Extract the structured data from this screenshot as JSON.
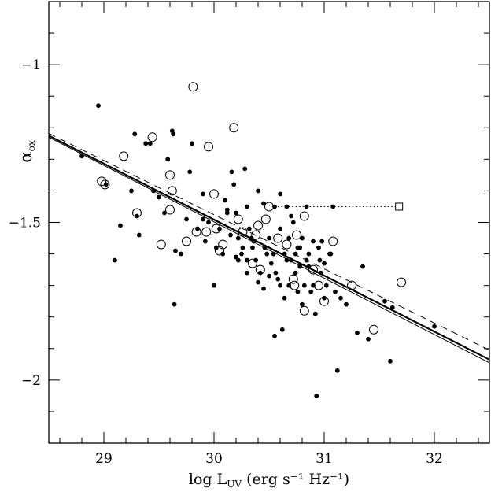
{
  "chart_data": {
    "type": "scatter",
    "title": "",
    "xlabel": "log L",
    "xlabel_sub": "UV",
    "xlabel_units": " (erg s⁻¹ Hz⁻¹)",
    "ylabel": "α",
    "ylabel_sub": "ox",
    "xlim": [
      28.5,
      32.5
    ],
    "ylim": [
      -2.2,
      -0.8
    ],
    "x_ticks": [
      {
        "value": 29,
        "label": "29"
      },
      {
        "value": 30,
        "label": "30"
      },
      {
        "value": 31,
        "label": "31"
      },
      {
        "value": 32,
        "label": "32"
      }
    ],
    "y_ticks": [
      {
        "value": -1,
        "label": "−1"
      },
      {
        "value": -1.5,
        "label": "−1.5"
      },
      {
        "value": -2,
        "label": "−2"
      }
    ],
    "x_minor_step": 0.2,
    "y_minor_step": 0.1,
    "grid": false,
    "series": [
      {
        "marker": "filled-circle",
        "points": [
          [
            28.8,
            -1.29
          ],
          [
            28.95,
            -1.13
          ],
          [
            29.02,
            -1.38
          ],
          [
            29.1,
            -1.62
          ],
          [
            29.15,
            -1.51
          ],
          [
            29.25,
            -1.4
          ],
          [
            29.28,
            -1.22
          ],
          [
            29.3,
            -1.48
          ],
          [
            29.32,
            -1.54
          ],
          [
            29.38,
            -1.25
          ],
          [
            29.42,
            -1.25
          ],
          [
            29.45,
            -1.4
          ],
          [
            29.5,
            -1.42
          ],
          [
            29.55,
            -1.47
          ],
          [
            29.58,
            -1.3
          ],
          [
            29.62,
            -1.21
          ],
          [
            29.63,
            -1.22
          ],
          [
            29.64,
            -1.76
          ],
          [
            29.65,
            -1.59
          ],
          [
            29.7,
            -1.6
          ],
          [
            29.75,
            -1.49
          ],
          [
            29.78,
            -1.34
          ],
          [
            29.8,
            -1.25
          ],
          [
            29.85,
            -1.52
          ],
          [
            29.9,
            -1.41
          ],
          [
            29.92,
            -1.56
          ],
          [
            29.95,
            -1.5
          ],
          [
            30.0,
            -1.7
          ],
          [
            30.02,
            -1.58
          ],
          [
            30.05,
            -1.52
          ],
          [
            30.1,
            -1.43
          ],
          [
            30.12,
            -1.46
          ],
          [
            30.15,
            -1.54
          ],
          [
            30.18,
            -1.38
          ],
          [
            30.2,
            -1.47
          ],
          [
            30.22,
            -1.55
          ],
          [
            30.25,
            -1.6
          ],
          [
            30.28,
            -1.33
          ],
          [
            30.3,
            -1.62
          ],
          [
            30.3,
            -1.45
          ],
          [
            30.32,
            -1.52
          ],
          [
            30.35,
            -1.58
          ],
          [
            30.38,
            -1.62
          ],
          [
            30.4,
            -1.4
          ],
          [
            30.42,
            -1.66
          ],
          [
            30.45,
            -1.44
          ],
          [
            30.45,
            -1.71
          ],
          [
            30.48,
            -1.6
          ],
          [
            30.5,
            -1.55
          ],
          [
            30.52,
            -1.63
          ],
          [
            30.55,
            -1.86
          ],
          [
            30.55,
            -1.45
          ],
          [
            30.58,
            -1.68
          ],
          [
            30.6,
            -1.52
          ],
          [
            30.62,
            -1.84
          ],
          [
            30.64,
            -1.6
          ],
          [
            30.66,
            -1.45
          ],
          [
            30.68,
            -1.55
          ],
          [
            30.7,
            -1.62
          ],
          [
            30.72,
            -1.5
          ],
          [
            30.74,
            -1.66
          ],
          [
            30.76,
            -1.58
          ],
          [
            30.78,
            -1.64
          ],
          [
            30.8,
            -1.55
          ],
          [
            30.82,
            -1.7
          ],
          [
            30.84,
            -1.45
          ],
          [
            30.86,
            -1.6
          ],
          [
            30.88,
            -1.72
          ],
          [
            30.9,
            -1.56
          ],
          [
            30.92,
            -1.79
          ],
          [
            30.93,
            -2.05
          ],
          [
            30.95,
            -1.58
          ],
          [
            30.97,
            -1.66
          ],
          [
            31.0,
            -1.63
          ],
          [
            31.02,
            -1.7
          ],
          [
            31.05,
            -1.6
          ],
          [
            31.08,
            -1.45
          ],
          [
            31.1,
            -1.72
          ],
          [
            31.12,
            -1.97
          ],
          [
            31.15,
            -1.74
          ],
          [
            31.2,
            -1.76
          ],
          [
            31.3,
            -1.85
          ],
          [
            31.35,
            -1.64
          ],
          [
            31.4,
            -1.87
          ],
          [
            31.55,
            -1.75
          ],
          [
            31.6,
            -1.94
          ],
          [
            31.62,
            -1.77
          ],
          [
            32.0,
            -1.83
          ],
          [
            30.08,
            -1.6
          ],
          [
            30.26,
            -1.58
          ],
          [
            30.36,
            -1.56
          ],
          [
            30.46,
            -1.58
          ],
          [
            30.54,
            -1.6
          ],
          [
            30.66,
            -1.62
          ],
          [
            30.74,
            -1.6
          ],
          [
            30.86,
            -1.64
          ],
          [
            30.96,
            -1.62
          ],
          [
            30.64,
            -1.74
          ],
          [
            30.8,
            -1.76
          ],
          [
            30.9,
            -1.7
          ],
          [
            30.6,
            -1.41
          ],
          [
            30.7,
            -1.48
          ],
          [
            30.78,
            -1.58
          ],
          [
            30.98,
            -1.56
          ],
          [
            31.06,
            -1.6
          ],
          [
            30.2,
            -1.61
          ],
          [
            30.3,
            -1.66
          ],
          [
            30.4,
            -1.69
          ],
          [
            30.5,
            -1.67
          ],
          [
            30.6,
            -1.7
          ],
          [
            30.16,
            -1.34
          ],
          [
            30.34,
            -1.55
          ],
          [
            30.22,
            -1.62
          ],
          [
            30.12,
            -1.47
          ],
          [
            30.56,
            -1.66
          ],
          [
            30.68,
            -1.7
          ],
          [
            30.76,
            -1.72
          ],
          [
            30.84,
            -1.62
          ],
          [
            31.0,
            -1.74
          ],
          [
            29.9,
            -1.49
          ]
        ]
      },
      {
        "marker": "open-circle",
        "points": [
          [
            28.98,
            -1.37
          ],
          [
            29.01,
            -1.38
          ],
          [
            29.18,
            -1.29
          ],
          [
            29.3,
            -1.47
          ],
          [
            29.44,
            -1.23
          ],
          [
            29.52,
            -1.57
          ],
          [
            29.6,
            -1.46
          ],
          [
            29.62,
            -1.4
          ],
          [
            29.6,
            -1.35
          ],
          [
            29.75,
            -1.56
          ],
          [
            29.81,
            -1.07
          ],
          [
            29.84,
            -1.53
          ],
          [
            29.93,
            -1.53
          ],
          [
            29.95,
            -1.26
          ],
          [
            30.0,
            -1.41
          ],
          [
            30.02,
            -1.52
          ],
          [
            30.05,
            -1.59
          ],
          [
            30.08,
            -1.57
          ],
          [
            30.18,
            -1.2
          ],
          [
            30.22,
            -1.49
          ],
          [
            30.26,
            -1.53
          ],
          [
            30.35,
            -1.63
          ],
          [
            30.38,
            -1.54
          ],
          [
            30.4,
            -1.51
          ],
          [
            30.42,
            -1.65
          ],
          [
            30.47,
            -1.49
          ],
          [
            30.5,
            -1.45
          ],
          [
            30.58,
            -1.55
          ],
          [
            30.66,
            -1.57
          ],
          [
            30.72,
            -1.68
          ],
          [
            30.73,
            -1.7
          ],
          [
            30.75,
            -1.54
          ],
          [
            30.82,
            -1.48
          ],
          [
            30.82,
            -1.78
          ],
          [
            30.9,
            -1.65
          ],
          [
            30.95,
            -1.7
          ],
          [
            31.0,
            -1.75
          ],
          [
            31.08,
            -1.56
          ],
          [
            31.25,
            -1.7
          ],
          [
            31.45,
            -1.84
          ],
          [
            31.7,
            -1.69
          ]
        ]
      }
    ],
    "open_square_marker": [
      31.68,
      -1.45
    ],
    "dotted_segment": {
      "from": [
        30.58,
        -1.45
      ],
      "to": [
        31.68,
        -1.45
      ]
    },
    "fit_lines": [
      {
        "style": "solid-thick",
        "x": [
          28.5,
          32.5
        ],
        "y": [
          -1.225,
          -1.935
        ]
      },
      {
        "style": "solid-thin",
        "x": [
          28.5,
          32.5
        ],
        "y": [
          -1.23,
          -1.945
        ]
      },
      {
        "style": "dashed",
        "x": [
          28.5,
          32.5
        ],
        "y": [
          -1.218,
          -1.905
        ]
      }
    ]
  }
}
